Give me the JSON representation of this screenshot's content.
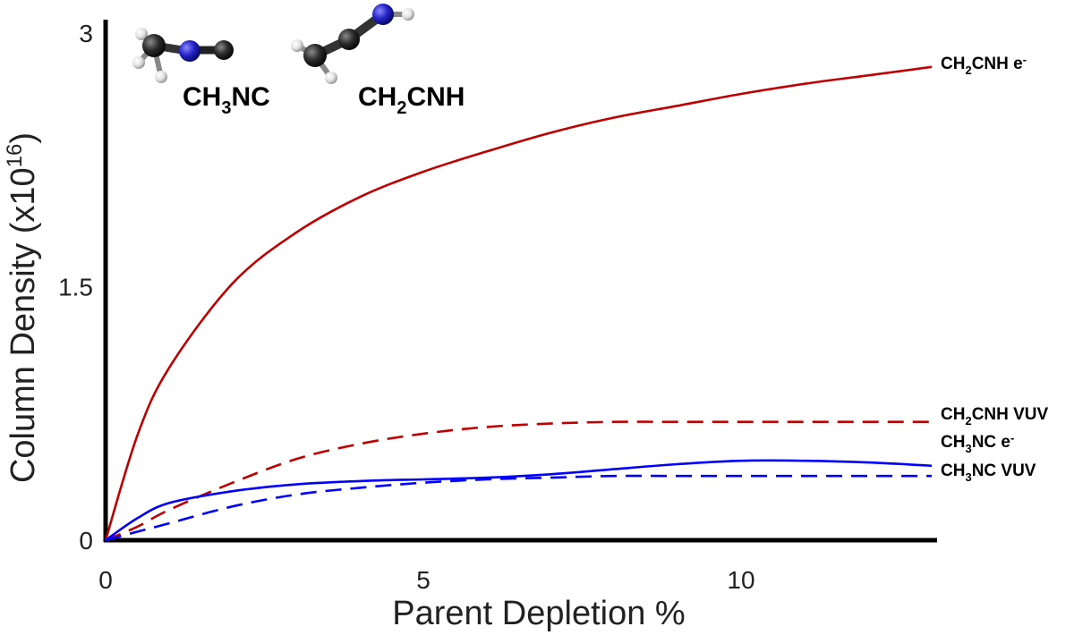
{
  "chart_data": {
    "type": "line",
    "xlabel": "Parent Depletion %",
    "ylabel_main": "Column Density (x10",
    "ylabel_sup": "16",
    "ylabel_close": ")",
    "xlim": [
      0,
      13
    ],
    "ylim": [
      0,
      3
    ],
    "xticks": [
      {
        "v": 0,
        "label": "0"
      },
      {
        "v": 5,
        "label": "5"
      },
      {
        "v": 10,
        "label": "10"
      }
    ],
    "yticks": [
      {
        "v": 0,
        "label": "0"
      },
      {
        "v": 1.5,
        "label": "1.5"
      },
      {
        "v": 3,
        "label": "3"
      }
    ],
    "grid": false,
    "series": [
      {
        "id": "s1",
        "name": "CH2CNH e-",
        "label_parts": [
          [
            "CH",
            "n"
          ],
          [
            "2",
            "sub"
          ],
          [
            "CNH e",
            "n"
          ],
          [
            "-",
            "sup"
          ]
        ],
        "color": "#c00000",
        "dash": "solid",
        "x": [
          0,
          0.5,
          1,
          2,
          3,
          4,
          5,
          6,
          7,
          8,
          9,
          10,
          11,
          12,
          13
        ],
        "y": [
          0,
          0.62,
          1.02,
          1.52,
          1.82,
          2.03,
          2.18,
          2.3,
          2.41,
          2.5,
          2.57,
          2.64,
          2.7,
          2.75,
          2.8
        ]
      },
      {
        "id": "s2",
        "name": "CH2CNH VUV",
        "label_parts": [
          [
            "CH",
            "n"
          ],
          [
            "2",
            "sub"
          ],
          [
            "CNH VUV",
            "n"
          ]
        ],
        "color": "#c00000",
        "dash": "dashed",
        "x": [
          0,
          0.5,
          1,
          2,
          3,
          4,
          5,
          6,
          7,
          8,
          9,
          10,
          11,
          12,
          13
        ],
        "y": [
          0,
          0.08,
          0.18,
          0.34,
          0.48,
          0.57,
          0.63,
          0.67,
          0.69,
          0.7,
          0.7,
          0.7,
          0.7,
          0.7,
          0.7
        ]
      },
      {
        "id": "s3",
        "name": "CH3NC e-",
        "label_parts": [
          [
            "CH",
            "n"
          ],
          [
            "3",
            "sub"
          ],
          [
            "NC e",
            "n"
          ],
          [
            "-",
            "sup"
          ]
        ],
        "color": "#0000ff",
        "dash": "solid",
        "x": [
          0,
          0.5,
          1,
          2,
          3,
          4,
          5,
          6,
          7,
          8,
          9,
          10,
          11,
          12,
          13
        ],
        "y": [
          0,
          0.13,
          0.22,
          0.29,
          0.33,
          0.35,
          0.36,
          0.37,
          0.39,
          0.42,
          0.45,
          0.47,
          0.47,
          0.46,
          0.44
        ]
      },
      {
        "id": "s4",
        "name": "CH3NC VUV",
        "label_parts": [
          [
            "CH",
            "n"
          ],
          [
            "3",
            "sub"
          ],
          [
            "NC VUV",
            "n"
          ]
        ],
        "color": "#0000ff",
        "dash": "dashed",
        "x": [
          0,
          0.5,
          1,
          2,
          3,
          4,
          5,
          6,
          7,
          8,
          9,
          10,
          11,
          12,
          13
        ],
        "y": [
          0,
          0.05,
          0.1,
          0.2,
          0.27,
          0.31,
          0.34,
          0.36,
          0.37,
          0.38,
          0.38,
          0.38,
          0.38,
          0.38,
          0.38
        ]
      }
    ],
    "molecules": [
      {
        "id": "ch3nc",
        "label_parts": [
          [
            "CH",
            "n"
          ],
          [
            "3",
            "sub"
          ],
          [
            "NC",
            "n"
          ]
        ]
      },
      {
        "id": "ch2cnh",
        "label_parts": [
          [
            "CH",
            "n"
          ],
          [
            "2",
            "sub"
          ],
          [
            "CNH",
            "n"
          ]
        ]
      }
    ]
  }
}
